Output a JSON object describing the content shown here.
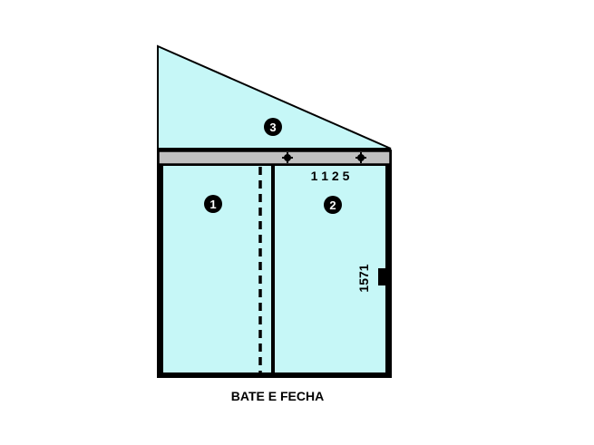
{
  "diagram": {
    "caption": "BATE E FECHA",
    "width_label": "1 1 2 5",
    "height_label": "1571",
    "panels": [
      {
        "id": "panel-1",
        "number": "1"
      },
      {
        "id": "panel-2",
        "number": "2"
      },
      {
        "id": "panel-3",
        "number": "3"
      }
    ],
    "colors": {
      "glass": "#c6f7f7",
      "frame": "#000000",
      "rail": "#c0c0c0",
      "badge": "#000000",
      "background": "#ffffff"
    },
    "icons": {
      "rail_screw": "plus-marker",
      "handle": "door-handle"
    }
  }
}
